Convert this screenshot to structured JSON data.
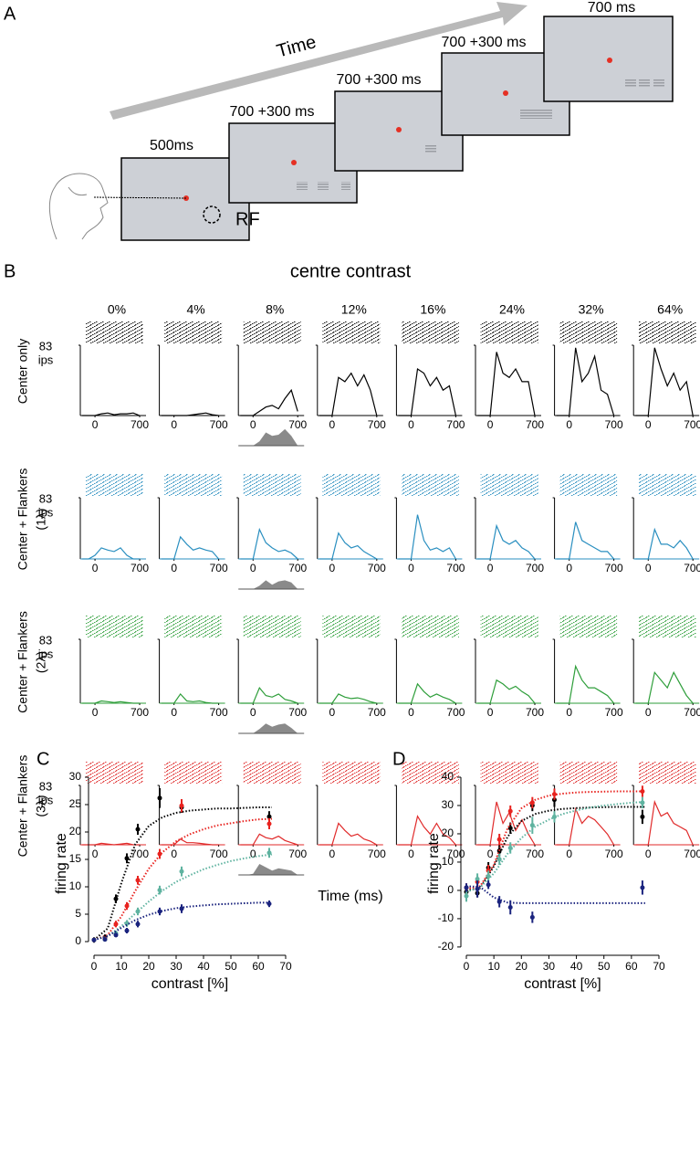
{
  "panel_a": {
    "label": "A",
    "arrow_label": "Time",
    "frames": [
      "500ms",
      "700 +300 ms",
      "700 +300 ms",
      "700 +300 ms",
      "700  ms"
    ],
    "rf_label": "RF"
  },
  "panel_b": {
    "label": "B",
    "title": "centre contrast",
    "xlabel": "Time (ms)",
    "contrasts": [
      "0%",
      "4%",
      "8%",
      "12%",
      "16%",
      "24%",
      "32%",
      "64%"
    ],
    "x": [
      -200,
      -100,
      0,
      100,
      200,
      300,
      400,
      500,
      600,
      700
    ],
    "xlim": [
      -230,
      800
    ],
    "xticks": [
      0,
      700
    ],
    "ylim": [
      0,
      83
    ],
    "yticks": [
      83
    ],
    "unit": "ips",
    "rows": [
      {
        "label": "Center only",
        "color": "#000000",
        "curves": [
          [
            0,
            0,
            0,
            2,
            3,
            1,
            2,
            2,
            3,
            0
          ],
          [
            0,
            0,
            0,
            0,
            0,
            1,
            2,
            3,
            1,
            0
          ],
          [
            0,
            0,
            0,
            5,
            10,
            12,
            8,
            20,
            30,
            5
          ],
          [
            0,
            0,
            0,
            45,
            40,
            50,
            35,
            48,
            30,
            0
          ],
          [
            0,
            0,
            0,
            55,
            50,
            35,
            45,
            30,
            35,
            0
          ],
          [
            0,
            0,
            0,
            75,
            50,
            45,
            55,
            40,
            40,
            0
          ],
          [
            0,
            0,
            0,
            80,
            40,
            50,
            70,
            30,
            25,
            0
          ],
          [
            0,
            0,
            0,
            80,
            55,
            35,
            50,
            30,
            40,
            0
          ]
        ],
        "difference": [
          0,
          0,
          0,
          20,
          60,
          45,
          50,
          75,
          45,
          0
        ]
      },
      {
        "label": "Center + Flankers",
        "sublabel": "(1λ)",
        "color": "#2a8fc0",
        "curves": [
          [
            0,
            0,
            5,
            15,
            12,
            10,
            15,
            5,
            0,
            0
          ],
          [
            0,
            0,
            0,
            30,
            20,
            12,
            15,
            12,
            10,
            0
          ],
          [
            0,
            0,
            0,
            40,
            22,
            15,
            10,
            12,
            8,
            0
          ],
          [
            0,
            0,
            0,
            35,
            22,
            15,
            18,
            10,
            5,
            0
          ],
          [
            0,
            0,
            0,
            60,
            25,
            12,
            15,
            10,
            15,
            0
          ],
          [
            0,
            0,
            0,
            45,
            25,
            20,
            25,
            15,
            10,
            0
          ],
          [
            0,
            0,
            0,
            50,
            25,
            20,
            15,
            10,
            10,
            0
          ],
          [
            0,
            0,
            0,
            40,
            20,
            20,
            15,
            25,
            15,
            0
          ]
        ],
        "difference": [
          0,
          0,
          0,
          15,
          40,
          20,
          35,
          40,
          30,
          0
        ]
      },
      {
        "label": "Center + Flankers",
        "sublabel": "(2λ)",
        "color": "#2e9e3a",
        "curves": [
          [
            0,
            0,
            0,
            3,
            2,
            1,
            2,
            1,
            0,
            0
          ],
          [
            0,
            0,
            0,
            12,
            3,
            2,
            3,
            1,
            0,
            0
          ],
          [
            0,
            0,
            0,
            20,
            10,
            8,
            12,
            5,
            3,
            0
          ],
          [
            0,
            0,
            0,
            12,
            8,
            6,
            7,
            5,
            2,
            0
          ],
          [
            0,
            0,
            0,
            25,
            15,
            8,
            12,
            8,
            5,
            0
          ],
          [
            0,
            0,
            0,
            30,
            25,
            18,
            22,
            15,
            10,
            0
          ],
          [
            0,
            0,
            0,
            48,
            30,
            20,
            20,
            15,
            10,
            0
          ],
          [
            0,
            0,
            0,
            40,
            30,
            20,
            40,
            25,
            10,
            0
          ]
        ],
        "difference": [
          0,
          0,
          0,
          20,
          45,
          30,
          40,
          45,
          25,
          0
        ]
      },
      {
        "label": "Center + Flankers",
        "sublabel": "(3λ)",
        "color": "#e02a2a",
        "curves": [
          [
            0,
            0,
            0,
            2,
            1,
            0,
            1,
            2,
            0,
            0
          ],
          [
            0,
            0,
            0,
            8,
            3,
            3,
            2,
            1,
            0,
            0
          ],
          [
            0,
            0,
            0,
            15,
            10,
            8,
            12,
            6,
            3,
            0
          ],
          [
            0,
            0,
            0,
            30,
            20,
            12,
            15,
            8,
            5,
            0
          ],
          [
            0,
            0,
            0,
            40,
            25,
            15,
            30,
            15,
            10,
            0
          ],
          [
            0,
            0,
            0,
            60,
            30,
            45,
            20,
            35,
            15,
            0
          ],
          [
            0,
            0,
            0,
            50,
            30,
            40,
            35,
            25,
            15,
            0
          ],
          [
            0,
            0,
            0,
            60,
            40,
            45,
            30,
            25,
            20,
            0
          ]
        ],
        "difference": [
          0,
          0,
          5,
          50,
          35,
          20,
          30,
          25,
          20,
          0
        ]
      }
    ]
  },
  "chart_data": [
    {
      "type": "scatter",
      "label": "C",
      "xlabel": "contrast [%]",
      "ylabel": "firing rate",
      "x": [
        0,
        4,
        8,
        12,
        16,
        24,
        32,
        64
      ],
      "fit_x": [
        0,
        5,
        10,
        15,
        20,
        25,
        30,
        35,
        40,
        45,
        50,
        55,
        60,
        65
      ],
      "xlim": [
        0,
        70
      ],
      "ylim": [
        -1.5,
        30
      ],
      "xticks": [
        0,
        10,
        20,
        30,
        40,
        50,
        60,
        70
      ],
      "yticks": [
        0,
        5,
        10,
        15,
        20,
        25,
        30
      ],
      "series": [
        {
          "color": "#000000",
          "values": [
            0.3,
            0.8,
            7.8,
            15.2,
            20.5,
            26.2,
            24.5,
            22.8
          ],
          "errors": [
            0.5,
            0.5,
            0.8,
            0.9,
            1,
            1.8,
            1,
            1
          ],
          "fit": [
            0.3,
            2.4,
            10.7,
            17.7,
            21.1,
            22.7,
            23.5,
            23.9,
            24.1,
            24.3,
            24.3,
            24.4,
            24.5,
            24.5
          ]
        },
        {
          "color": "#e8231f",
          "values": [
            0.3,
            0.5,
            3.2,
            6.5,
            11.2,
            16,
            24.8,
            21.5
          ],
          "errors": [
            0.3,
            0.4,
            0.6,
            0.7,
            0.8,
            0.9,
            1.2,
            1
          ],
          "fit": [
            0.3,
            1.2,
            4.6,
            9.2,
            13.3,
            16.3,
            18.3,
            19.6,
            20.5,
            21.2,
            21.6,
            22,
            22.3,
            22.4
          ]
        },
        {
          "color": "#5fb3a0",
          "values": [
            0.3,
            0.4,
            1.5,
            3.3,
            5.5,
            9.4,
            12.8,
            16.2
          ],
          "errors": [
            0.3,
            0.3,
            0.5,
            0.6,
            0.7,
            0.8,
            0.9,
            0.9
          ],
          "fit": [
            0.3,
            1,
            2.8,
            5.1,
            7.3,
            9.3,
            10.9,
            12.1,
            13.2,
            14,
            14.7,
            15.2,
            15.6,
            15.9
          ]
        },
        {
          "color": "#1a237e",
          "values": [
            0.3,
            0.4,
            1.2,
            2,
            3.2,
            5.5,
            6,
            6.9
          ],
          "errors": [
            0.3,
            0.3,
            0.4,
            0.5,
            0.6,
            0.7,
            0.8,
            0.6
          ],
          "fit": [
            0.3,
            1,
            2.5,
            3.9,
            4.9,
            5.6,
            6.1,
            6.4,
            6.6,
            6.8,
            6.9,
            7,
            7.1,
            7.1
          ]
        }
      ]
    },
    {
      "type": "scatter",
      "label": "D",
      "xlabel": "contrast [%]",
      "ylabel": "firing rate",
      "x": [
        0,
        4,
        8,
        12,
        16,
        24,
        32,
        64
      ],
      "fit_x": [
        0,
        5,
        10,
        15,
        20,
        25,
        30,
        35,
        40,
        45,
        50,
        55,
        60,
        65
      ],
      "xlim": [
        0,
        70
      ],
      "ylim": [
        -21,
        40
      ],
      "xticks": [
        0,
        10,
        20,
        30,
        40,
        50,
        60,
        70
      ],
      "yticks": [
        -20,
        -10,
        0,
        10,
        20,
        30,
        40
      ],
      "series": [
        {
          "color": "#000000",
          "values": [
            -0.5,
            -1,
            8,
            14,
            22,
            30,
            32,
            26
          ],
          "errors": [
            1.5,
            1.5,
            2,
            2,
            2,
            2,
            2.5,
            2.5
          ],
          "fit": [
            0,
            0.8,
            8.5,
            19,
            24.5,
            27,
            28.2,
            28.8,
            29.1,
            29.3,
            29.4,
            29.5,
            29.5,
            29.5
          ]
        },
        {
          "color": "#e8231f",
          "values": [
            1,
            3,
            7,
            18,
            28,
            31,
            34,
            35
          ],
          "errors": [
            1.5,
            2,
            2,
            2,
            2,
            2,
            2,
            2
          ],
          "fit": [
            0.5,
            1.5,
            9,
            22,
            29,
            32,
            33.5,
            34.2,
            34.6,
            34.8,
            34.9,
            35,
            35,
            35
          ]
        },
        {
          "color": "#5fb3a0",
          "values": [
            -2,
            4,
            5,
            11,
            15,
            23,
            26,
            31
          ],
          "errors": [
            2,
            2,
            2,
            2,
            2,
            3,
            2,
            2
          ],
          "fit": [
            -0.5,
            1,
            6,
            13,
            18.5,
            22.5,
            25,
            27,
            28.3,
            29.3,
            30,
            30.5,
            31,
            31.3
          ]
        },
        {
          "color": "#1a237e",
          "values": [
            1,
            0.5,
            2,
            -4,
            -6,
            -9.5,
            null,
            1
          ],
          "errors": [
            1.5,
            3,
            1.5,
            2,
            2.5,
            2,
            null,
            2.5
          ],
          "fit": [
            1.5,
            1.2,
            -2.5,
            -4.3,
            -4.5,
            -4.5,
            -4.5,
            -4.5,
            -4.5,
            -4.5,
            -4.5,
            -4.5,
            -4.5,
            -4.5
          ]
        }
      ]
    }
  ]
}
